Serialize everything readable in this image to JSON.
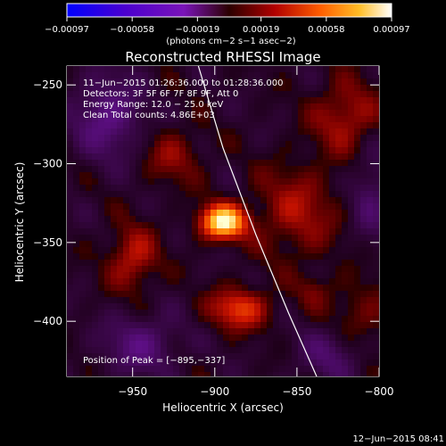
{
  "chart_data": {
    "type": "heatmap",
    "title": "Reconstructed RHESSI Image",
    "xlabel": "Heliocentric X (arcsec)",
    "ylabel": "Heliocentric Y (arcsec)",
    "xlim": [
      -990,
      -800
    ],
    "ylim": [
      -435,
      -238
    ],
    "x_ticks": [
      -950,
      -900,
      -850,
      -800
    ],
    "x_tick_labels": [
      "−950",
      "−900",
      "−850",
      "−800"
    ],
    "y_ticks": [
      -400,
      -350,
      -300,
      -250
    ],
    "y_tick_labels": [
      "−400",
      "−350",
      "−300",
      "−250"
    ],
    "colorbar": {
      "ticks": [
        -0.00097,
        -0.00058,
        -0.00019,
        0.00019,
        0.00058,
        0.00097
      ],
      "tick_labels": [
        "−0.00097",
        "−0.00058",
        "−0.00019",
        "0.00019",
        "0.00058",
        "0.00097"
      ],
      "units": "(photons cm−2 s−1 asec−2)",
      "range": [
        -0.00097,
        0.00097
      ]
    },
    "annotations": {
      "time_range": "11−Jun−2015 01:26:36.000 to 01:28:36.000",
      "detectors": "Detectors: 3F 5F 6F 7F 8F 9F, Att 0",
      "energy_range": "Energy Range: 12.0 − 25.0 keV",
      "clean_counts": "Clean     Total counts: 4.86E+03",
      "peak_position": "Position of Peak = [−895,−337]"
    },
    "peak": {
      "x": -895,
      "y": -337
    },
    "limb": [
      {
        "x": -910,
        "y": -238
      },
      {
        "x": -895,
        "y": -290
      },
      {
        "x": -875,
        "y": -345
      },
      {
        "x": -855,
        "y": -395
      },
      {
        "x": -838,
        "y": -435
      }
    ],
    "grid": false,
    "legend": "none"
  },
  "footer": {
    "timestamp": "12−Jun−2015 08:41"
  }
}
